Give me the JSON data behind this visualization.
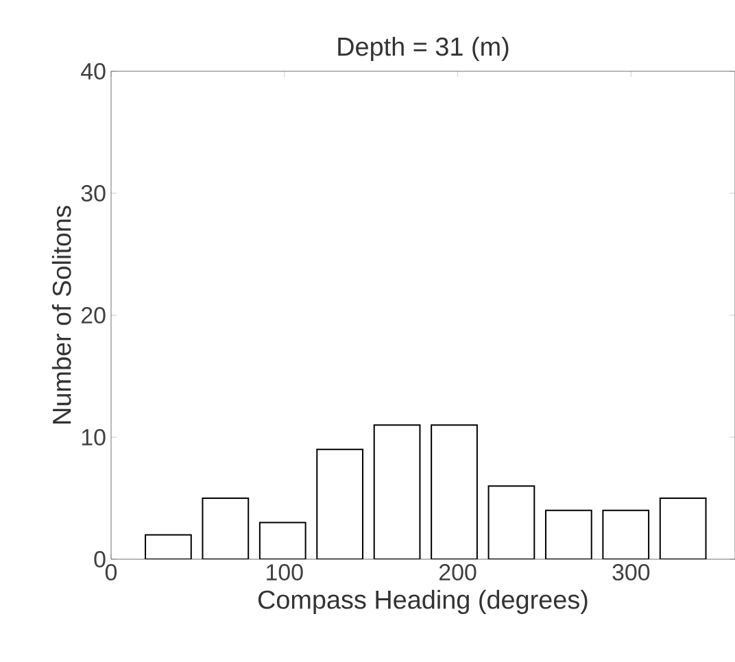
{
  "chart_data": {
    "type": "histogram",
    "title": "Depth = 31 (m)",
    "xlabel": "Compass Heading (degrees)",
    "ylabel": "Number of Solitons",
    "bins": [
      16.5,
      49.5,
      82.5,
      115.5,
      148.5,
      181.5,
      214.5,
      247.5,
      280.5,
      313.5,
      346.5
    ],
    "values": [
      2,
      5,
      3,
      9,
      11,
      11,
      6,
      4,
      4,
      5
    ],
    "color": "#ffffff",
    "xlim": [
      0,
      360
    ],
    "ylim": [
      0,
      40
    ],
    "xticks": [
      0,
      100,
      200,
      300
    ],
    "yticks": [
      0,
      10,
      20,
      30,
      40
    ],
    "grid": false
  }
}
